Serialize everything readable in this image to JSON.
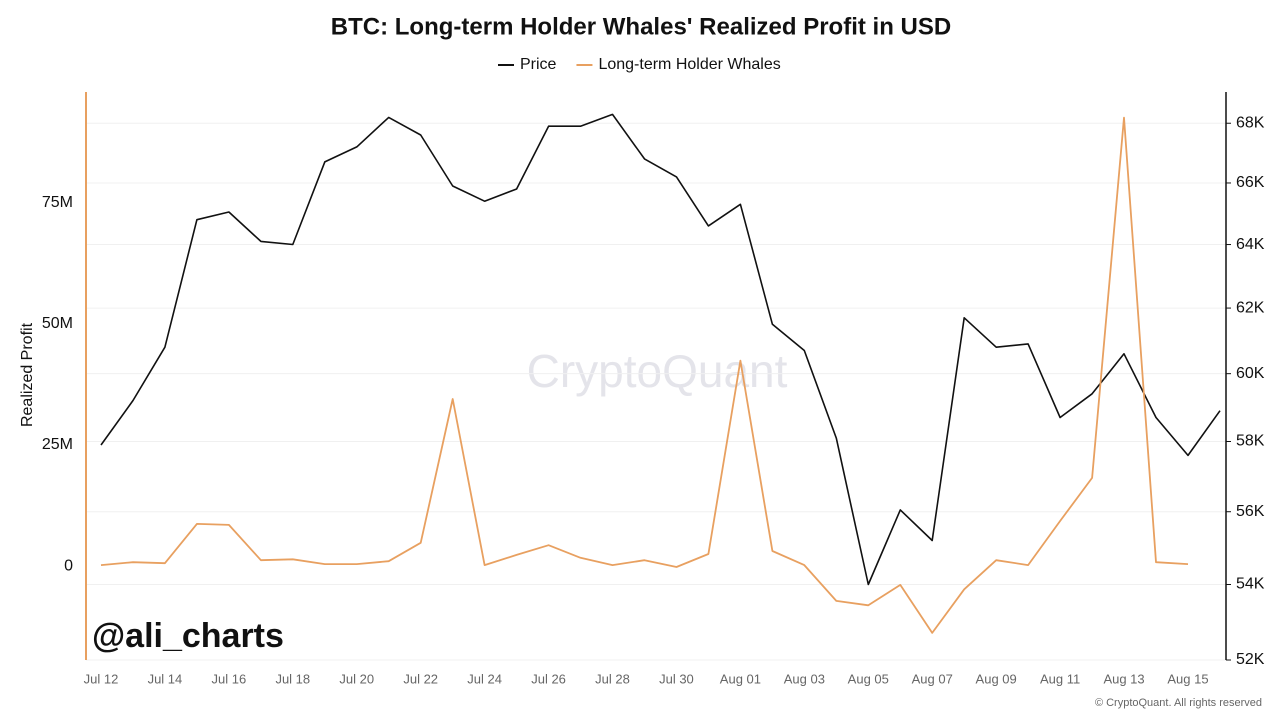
{
  "chart_data": {
    "type": "line",
    "title": "BTC: Long-term Holder Whales' Realized Profit in USD",
    "y_label": "Realized Profit",
    "watermark": "CryptoQuant",
    "credit": "@ali_charts",
    "copyright": "© CryptoQuant. All rights reserved",
    "categories": [
      "Jul 12",
      null,
      "Jul 14",
      null,
      "Jul 16",
      null,
      "Jul 18",
      null,
      "Jul 20",
      null,
      "Jul 22",
      null,
      "Jul 24",
      null,
      "Jul 26",
      null,
      "Jul 28",
      null,
      "Jul 30",
      null,
      "Aug 01",
      null,
      "Aug 03",
      null,
      "Aug 05",
      null,
      "Aug 07",
      null,
      "Aug 09",
      null,
      "Aug 11",
      null,
      "Aug 13",
      null,
      "Aug 15",
      null
    ],
    "series": [
      {
        "name": "Price",
        "color": "#111111",
        "axis": "y2",
        "values": [
          57900,
          59200,
          60800,
          64800,
          65050,
          64100,
          64000,
          66700,
          67200,
          68200,
          67600,
          65900,
          65400,
          65800,
          67900,
          67900,
          68300,
          66800,
          66200,
          64600,
          65300,
          61500,
          60700,
          58100,
          54000,
          56050,
          55200,
          61700,
          60800,
          60900,
          58700,
          59400,
          60600,
          58700,
          57600,
          58900
        ]
      },
      {
        "name": "Long-term Holder Whales",
        "color": "#e8a060",
        "values": [
          200000,
          800000,
          600000,
          8700000,
          8500000,
          1200000,
          1400000,
          400000,
          400000,
          1000000,
          4800000,
          34500000,
          200000,
          2300000,
          4300000,
          1700000,
          200000,
          1200000,
          -200000,
          2500000,
          42400000,
          3100000,
          200000,
          -7200000,
          -8100000,
          -3900000,
          -13800000,
          -4800000,
          1200000,
          200000,
          9300000,
          18200000,
          92600000,
          800000,
          400000,
          null
        ]
      }
    ],
    "ylim": [
      -19400000,
      97900000
    ],
    "yticks": [
      {
        "value": 0,
        "label": "0"
      },
      {
        "value": 25000000,
        "label": "25M"
      },
      {
        "value": 50000000,
        "label": "50M"
      },
      {
        "value": 75000000,
        "label": "75M"
      }
    ],
    "y2lim": [
      52000,
      69070
    ],
    "y2_log": true,
    "y2ticks": [
      {
        "value": 52000,
        "label": "52K"
      },
      {
        "value": 54000,
        "label": "54K"
      },
      {
        "value": 56000,
        "label": "56K"
      },
      {
        "value": 58000,
        "label": "58K"
      },
      {
        "value": 60000,
        "label": "60K"
      },
      {
        "value": 62000,
        "label": "62K"
      },
      {
        "value": 64000,
        "label": "64K"
      },
      {
        "value": 66000,
        "label": "66K"
      },
      {
        "value": 68000,
        "label": "68K"
      }
    ],
    "grid": true,
    "legend": "top"
  }
}
